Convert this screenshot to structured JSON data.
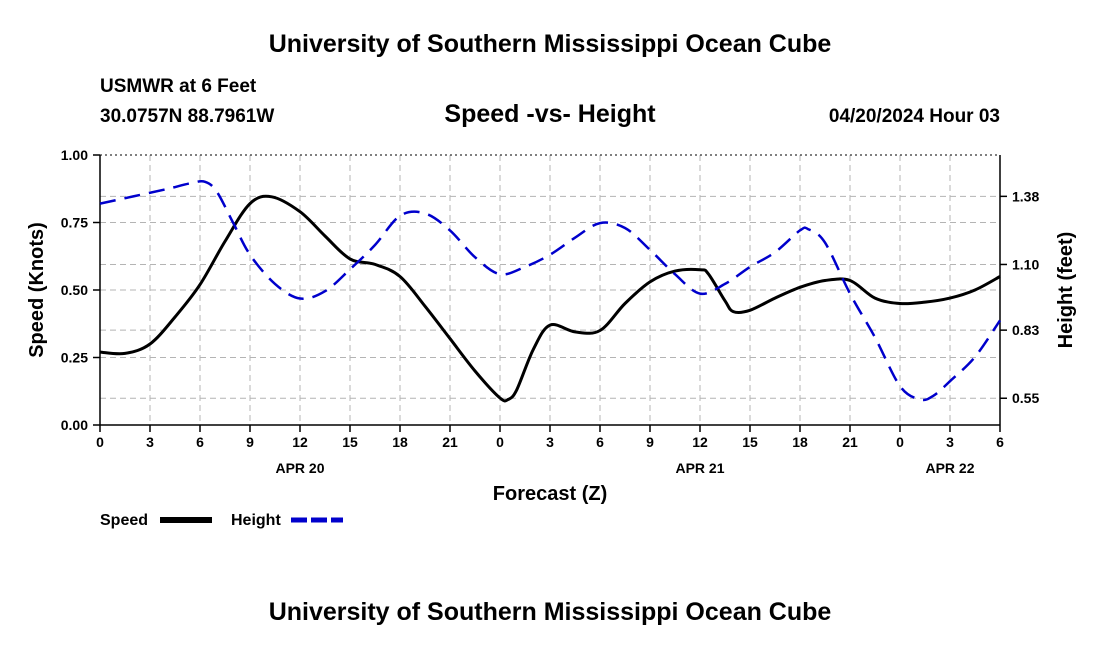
{
  "page": {
    "title": "University of Southern Mississippi Ocean Cube",
    "footer_title": "University of Southern Mississippi Ocean Cube",
    "station": "USMWR at 6 Feet",
    "coordinates": "30.0757N  88.7961W",
    "subtitle": "Speed -vs- Height",
    "datetime": "04/20/2024 Hour 03"
  },
  "colors": {
    "speed": "#000000",
    "height": "#0000cc",
    "grid": "#b4b4b4",
    "frame": "#000000"
  },
  "chart_data": {
    "type": "line",
    "title": "Speed -vs- Height",
    "xlabel": "Forecast (Z)",
    "ylabel": "Speed (Knots)",
    "y2label": "Height (feet)",
    "x_unit": "hours from Apr 20 00Z",
    "xlim": [
      0,
      54
    ],
    "ylim": [
      0,
      1
    ],
    "y2lim": [
      0.44,
      1.55
    ],
    "x_ticks": [
      0,
      3,
      6,
      9,
      12,
      15,
      18,
      21,
      24,
      27,
      30,
      33,
      36,
      39,
      42,
      45,
      48,
      51,
      54
    ],
    "x_tick_labels": [
      "0",
      "3",
      "6",
      "9",
      "12",
      "15",
      "18",
      "21",
      "0",
      "3",
      "6",
      "9",
      "12",
      "15",
      "18",
      "21",
      "0",
      "3",
      "6"
    ],
    "day_labels": [
      {
        "x": 12,
        "label": "APR 20"
      },
      {
        "x": 36,
        "label": "APR 21"
      },
      {
        "x": 51,
        "label": "APR 22"
      }
    ],
    "y_ticks": [
      0,
      0.25,
      0.5,
      0.75,
      1.0
    ],
    "y_tick_labels": [
      "0.00",
      "0.25",
      "0.50",
      "0.75",
      "1.00"
    ],
    "y2_ticks": [
      0.55,
      0.83,
      1.1,
      1.38
    ],
    "y2_tick_labels": [
      "0.55",
      "0.83",
      "1.10",
      "1.38"
    ],
    "legend": [
      "Speed",
      "Height"
    ],
    "series": [
      {
        "name": "Speed",
        "axis": "left",
        "style": "solid",
        "x": [
          0,
          1.5,
          3,
          4.5,
          6,
          7.5,
          9,
          10.3,
          12,
          13.5,
          15,
          16.5,
          18,
          19.5,
          21,
          22.5,
          24,
          24.5,
          25,
          26,
          27,
          28.5,
          30,
          31.5,
          33,
          34.5,
          36,
          36.5,
          37.5,
          38,
          39,
          40.5,
          42,
          43.5,
          45,
          46.5,
          48,
          49.5,
          51,
          52.5,
          54
        ],
        "values": [
          0.27,
          0.265,
          0.3,
          0.4,
          0.52,
          0.68,
          0.82,
          0.845,
          0.79,
          0.7,
          0.615,
          0.595,
          0.55,
          0.44,
          0.32,
          0.2,
          0.1,
          0.095,
          0.13,
          0.28,
          0.37,
          0.345,
          0.35,
          0.45,
          0.53,
          0.57,
          0.575,
          0.56,
          0.46,
          0.42,
          0.425,
          0.47,
          0.51,
          0.535,
          0.535,
          0.47,
          0.45,
          0.455,
          0.47,
          0.5,
          0.55
        ]
      },
      {
        "name": "Height",
        "axis": "right",
        "style": "dashed",
        "x": [
          0,
          2,
          4,
          5.5,
          6.3,
          7,
          8,
          9,
          10.5,
          12,
          13.5,
          15,
          16.5,
          18,
          19.5,
          21,
          22.5,
          24,
          25.5,
          27,
          28.5,
          30,
          31.5,
          33,
          34.5,
          36,
          37.5,
          39,
          40.5,
          42,
          42.5,
          43.5,
          45,
          46.5,
          48,
          49.2,
          50,
          51,
          52.5,
          54
        ],
        "values": [
          1.35,
          1.38,
          1.41,
          1.435,
          1.44,
          1.4,
          1.27,
          1.14,
          1.02,
          0.96,
          0.99,
          1.08,
          1.18,
          1.3,
          1.31,
          1.24,
          1.13,
          1.06,
          1.09,
          1.14,
          1.21,
          1.27,
          1.25,
          1.16,
          1.06,
          0.98,
          1.02,
          1.09,
          1.15,
          1.24,
          1.245,
          1.19,
          0.98,
          0.8,
          0.6,
          0.545,
          0.56,
          0.62,
          0.72,
          0.87
        ]
      }
    ]
  }
}
